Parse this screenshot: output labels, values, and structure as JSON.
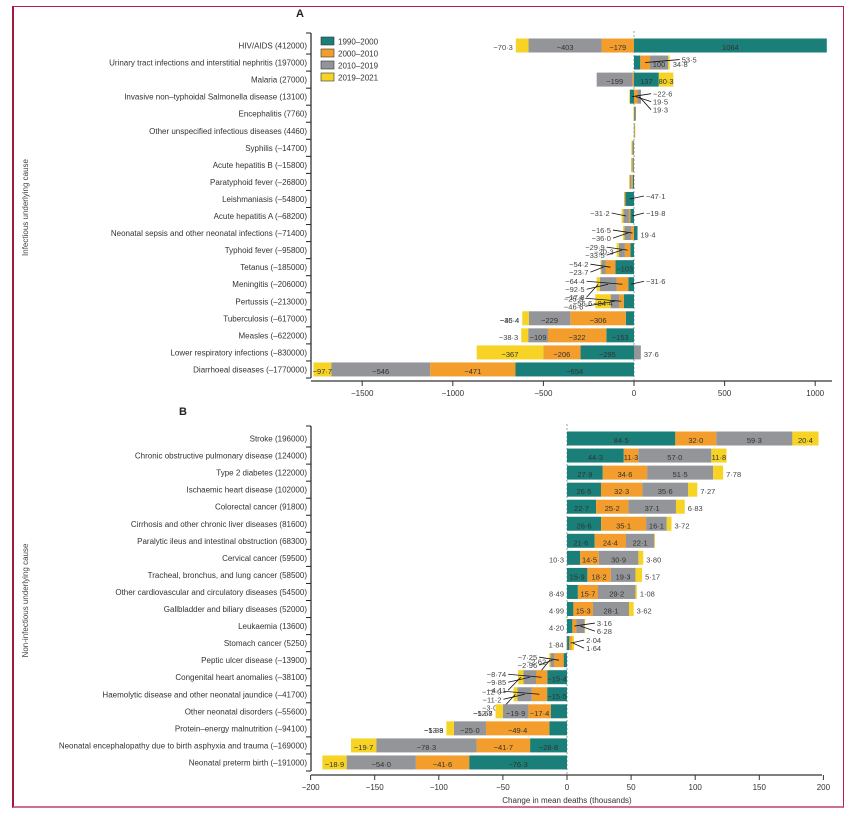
{
  "colors": {
    "1990-2000": "#1a7f78",
    "2000-2010": "#f39d2c",
    "2010-2019": "#939598",
    "2019-2021": "#f6d324"
  },
  "legend": [
    "1990–2000",
    "2000–2010",
    "2010–2019",
    "2019–2021"
  ],
  "chart_data": [
    {
      "type": "bar",
      "orientation": "horizontal-stacked-diverging",
      "title": "A",
      "ylabel": "Infectious underlying cause",
      "xlabel": "",
      "xlim": [
        -1750,
        1100
      ],
      "xticks": [
        -1500,
        -1000,
        -500,
        0,
        500,
        1000
      ],
      "xtick_labels": [
        "−1500",
        "−1000",
        "−500",
        "0",
        "500",
        "1000"
      ],
      "legend_position": "top-right",
      "series_names": [
        "1990–2000",
        "2000–2010",
        "2010–2019",
        "2019–2021"
      ],
      "categories": [
        "HIV/AIDS (412000)",
        "Urinary tract infections and interstitial nephritis (197000)",
        "Malaria (27000)",
        "Invasive non–typhoidal Salmonella disease (13100)",
        "Encephalitis (7760)",
        "Other unspecified infectious diseases (4460)",
        "Syphilis (–14700)",
        "Acute hepatitis B (–15800)",
        "Paratyphoid fever (–26800)",
        "Leishmaniasis (–54800)",
        "Acute hepatitis A (–68200)",
        "Neonatal sepsis and other neonatal infections (–71400)",
        "Typhoid fever (–95800)",
        "Tetanus (–185000)",
        "Meningitis (–206000)",
        "Pertussis (–213000)",
        "Tuberculosis (–617000)",
        "Measles (–622000)",
        "Lower respiratory infections (–830000)",
        "Diarrhoeal diseases (–1770000)"
      ],
      "values": [
        [
          1064,
          -179,
          -403,
          -70.3
        ],
        [
          34.8,
          53.5,
          100,
          8.7
        ],
        [
          137,
          -7,
          -199,
          80.3
        ],
        [
          -22.6,
          19.5,
          19.3,
          -3.1
        ],
        [
          5,
          -2,
          6,
          -1.2
        ],
        [
          2,
          2,
          -1,
          1.5
        ],
        [
          -3,
          -4,
          -5,
          -2.7
        ],
        [
          -4,
          -5,
          -5,
          -1.8
        ],
        [
          -7,
          -9,
          -8,
          -2.8
        ],
        [
          -47.1,
          -4,
          -2,
          -1.7
        ],
        [
          -19.8,
          -8,
          -31.2,
          -9.2
        ],
        [
          19.4,
          -16.5,
          -36.0,
          -8.3
        ],
        [
          -20.3,
          -29.9,
          -33.5,
          -12.1
        ],
        [
          -103,
          -54.2,
          -23.7,
          -4.1
        ],
        [
          -31.6,
          -64.4,
          -92.5,
          -17.8
        ],
        [
          -56.6,
          -25.8,
          -46.6,
          -84.4
        ],
        [
          -45.4,
          -306,
          -229,
          -36.4
        ],
        [
          -153,
          -322,
          -109,
          -38.3
        ],
        [
          -295,
          -206,
          37.6,
          -367
        ],
        [
          -654,
          -471,
          -546,
          -97.7
        ]
      ],
      "labels": [
        [
          {
            "s": 0,
            "t": "1064",
            "pos": "in"
          },
          {
            "s": 1,
            "t": "−179",
            "pos": "in"
          },
          {
            "s": 2,
            "t": "−403",
            "pos": "in"
          },
          {
            "s": 3,
            "t": "−70·3",
            "pos": "out"
          }
        ],
        [
          {
            "s": 0,
            "t": "34·8",
            "pos": "out"
          },
          {
            "s": 1,
            "t": "53·5",
            "pos": "callout"
          },
          {
            "s": 2,
            "t": "100",
            "pos": "in"
          }
        ],
        [
          {
            "s": 0,
            "t": "137",
            "pos": "in"
          },
          {
            "s": 2,
            "t": "−199",
            "pos": "in"
          },
          {
            "s": 3,
            "t": "80·3",
            "pos": "in"
          }
        ],
        [
          {
            "s": 0,
            "t": "−22·6",
            "pos": "callout"
          },
          {
            "s": 1,
            "t": "19·5",
            "pos": "callout"
          },
          {
            "s": 2,
            "t": "19·3",
            "pos": "callout"
          }
        ],
        [],
        [],
        [],
        [],
        [],
        [
          {
            "s": 0,
            "t": "−47·1",
            "pos": "callout"
          }
        ],
        [
          {
            "s": 0,
            "t": "−19·8",
            "pos": "callout"
          },
          {
            "s": 2,
            "t": "−31·2",
            "pos": "callout"
          }
        ],
        [
          {
            "s": 0,
            "t": "19·4",
            "pos": "out"
          },
          {
            "s": 1,
            "t": "−16·5",
            "pos": "callout"
          },
          {
            "s": 2,
            "t": "−36·0",
            "pos": "callout"
          }
        ],
        [
          {
            "s": 0,
            "t": "−20·3",
            "pos": "out"
          },
          {
            "s": 1,
            "t": "−29·9",
            "pos": "callout"
          },
          {
            "s": 2,
            "t": "−33·5",
            "pos": "callout"
          }
        ],
        [
          {
            "s": 0,
            "t": "−103",
            "pos": "in"
          },
          {
            "s": 1,
            "t": "−54·2",
            "pos": "callout"
          },
          {
            "s": 2,
            "t": "−23·7",
            "pos": "callout"
          }
        ],
        [
          {
            "s": 0,
            "t": "−31·6",
            "pos": "callout"
          },
          {
            "s": 1,
            "t": "−64·4",
            "pos": "callout"
          },
          {
            "s": 2,
            "t": "−92·5",
            "pos": "callout"
          },
          {
            "s": 3,
            "t": "−17·8",
            "pos": "callout"
          }
        ],
        [
          {
            "s": 0,
            "t": "−56·6",
            "pos": "out"
          },
          {
            "s": 1,
            "t": "−25·8",
            "pos": "callout"
          },
          {
            "s": 2,
            "t": "−46·6",
            "pos": "callout"
          },
          {
            "s": 3,
            "t": "−84·4",
            "pos": "in"
          }
        ],
        [
          {
            "s": 0,
            "t": "−45·4",
            "pos": "out"
          },
          {
            "s": 1,
            "t": "−306",
            "pos": "in"
          },
          {
            "s": 2,
            "t": "−229",
            "pos": "in"
          },
          {
            "s": 3,
            "t": "−36·4",
            "pos": "out"
          }
        ],
        [
          {
            "s": 0,
            "t": "−153",
            "pos": "in"
          },
          {
            "s": 1,
            "t": "−322",
            "pos": "in"
          },
          {
            "s": 2,
            "t": "−109",
            "pos": "in"
          },
          {
            "s": 3,
            "t": "−38·3",
            "pos": "out"
          }
        ],
        [
          {
            "s": 0,
            "t": "−295",
            "pos": "in"
          },
          {
            "s": 1,
            "t": "−206",
            "pos": "in"
          },
          {
            "s": 2,
            "t": "37·6",
            "pos": "out"
          },
          {
            "s": 3,
            "t": "−367",
            "pos": "in"
          }
        ],
        [
          {
            "s": 0,
            "t": "−654",
            "pos": "in"
          },
          {
            "s": 1,
            "t": "−471",
            "pos": "in"
          },
          {
            "s": 2,
            "t": "−546",
            "pos": "in"
          },
          {
            "s": 3,
            "t": "−97·7",
            "pos": "in"
          }
        ]
      ]
    },
    {
      "type": "bar",
      "orientation": "horizontal-stacked-diverging",
      "title": "B",
      "ylabel": "Non-infectious underlying cause",
      "xlabel": "Change in mean deaths (thousands)",
      "xlim": [
        -200,
        205
      ],
      "xticks": [
        -200,
        -150,
        -100,
        -50,
        0,
        50,
        100,
        150,
        200
      ],
      "xtick_labels": [
        "−200",
        "−150",
        "−100",
        "−50",
        "0",
        "50",
        "100",
        "150",
        "200"
      ],
      "series_names": [
        "1990–2000",
        "2000–2010",
        "2010–2019",
        "2019–2021"
      ],
      "categories": [
        "Stroke (196000)",
        "Chronic obstructive pulmonary disease (124000)",
        "Type 2 diabetes (122000)",
        "Ischaemic heart disease (102000)",
        "Colorectal cancer (91800)",
        "Cirrhosis and other chronic liver diseases (81600)",
        "Paralytic ileus and intestinal obstruction (68300)",
        "Cervical cancer (59500)",
        "Tracheal, bronchus, and lung cancer (58500)",
        "Other cardiovascular and circulatory diseases (54500)",
        "Gallbladder and biliary diseases (52000)",
        "Leukaemia (13600)",
        "Stomach cancer (5250)",
        "Peptic ulcer disease (–13900)",
        "Congenital heart anomalies (–38100)",
        "Haemolytic  disease and other neonatal jaundice (–41700)",
        "Other neonatal disorders (–55600)",
        "Protein–energy malnutrition (–94100)",
        "Neonatal encephalopathy due to birth asphyxia and trauma (–169000)",
        "Neonatal preterm birth (–191000)"
      ],
      "values": [
        [
          84.5,
          32.0,
          59.3,
          20.4
        ],
        [
          44.3,
          11.3,
          57.0,
          11.8
        ],
        [
          27.9,
          34.6,
          51.5,
          7.78
        ],
        [
          26.5,
          32.3,
          35.6,
          7.27
        ],
        [
          22.7,
          25.2,
          37.1,
          6.83
        ],
        [
          26.6,
          35.1,
          16.1,
          3.72
        ],
        [
          21.6,
          24.4,
          22.1,
          0.5
        ],
        [
          10.3,
          14.5,
          30.9,
          3.8
        ],
        [
          15.9,
          18.2,
          19.3,
          5.17
        ],
        [
          8.49,
          15.7,
          29.2,
          1.08
        ],
        [
          4.99,
          15.3,
          28.1,
          3.62
        ],
        [
          4.2,
          3.16,
          6.28,
          0.3
        ],
        [
          1.84,
          2.04,
          -0.3,
          1.64
        ],
        [
          -2.62,
          -7.25,
          -2.96,
          -1.08
        ],
        [
          -15.4,
          -8.74,
          -9.85,
          -4.11
        ],
        [
          -15.5,
          -12.0,
          -11.2,
          -3.06
        ],
        [
          -12.7,
          -17.4,
          -19.9,
          -5.68
        ],
        [
          -13.8,
          -49.4,
          -25.0,
          -5.89
        ],
        [
          -28.8,
          -41.7,
          -78.3,
          -19.7
        ],
        [
          -76.3,
          -41.6,
          -54.0,
          -18.9
        ]
      ],
      "labels": [
        [
          {
            "s": 0,
            "t": "84·5",
            "pos": "in"
          },
          {
            "s": 1,
            "t": "32·0",
            "pos": "in"
          },
          {
            "s": 2,
            "t": "59·3",
            "pos": "in"
          },
          {
            "s": 3,
            "t": "20·4",
            "pos": "in"
          }
        ],
        [
          {
            "s": 0,
            "t": "44·3",
            "pos": "in"
          },
          {
            "s": 1,
            "t": "11·3",
            "pos": "in"
          },
          {
            "s": 2,
            "t": "57·0",
            "pos": "in"
          },
          {
            "s": 3,
            "t": "11·8",
            "pos": "in"
          }
        ],
        [
          {
            "s": 0,
            "t": "27·9",
            "pos": "in"
          },
          {
            "s": 1,
            "t": "34·6",
            "pos": "in"
          },
          {
            "s": 2,
            "t": "51·5",
            "pos": "in"
          },
          {
            "s": 3,
            "t": "7·78",
            "pos": "out"
          }
        ],
        [
          {
            "s": 0,
            "t": "26·5",
            "pos": "in"
          },
          {
            "s": 1,
            "t": "32·3",
            "pos": "in"
          },
          {
            "s": 2,
            "t": "35·6",
            "pos": "in"
          },
          {
            "s": 3,
            "t": "7·27",
            "pos": "out"
          }
        ],
        [
          {
            "s": 0,
            "t": "22·7",
            "pos": "in"
          },
          {
            "s": 1,
            "t": "25·2",
            "pos": "in"
          },
          {
            "s": 2,
            "t": "37·1",
            "pos": "in"
          },
          {
            "s": 3,
            "t": "6·83",
            "pos": "out"
          }
        ],
        [
          {
            "s": 0,
            "t": "26·6",
            "pos": "in"
          },
          {
            "s": 1,
            "t": "35·1",
            "pos": "in"
          },
          {
            "s": 2,
            "t": "16·1",
            "pos": "in"
          },
          {
            "s": 3,
            "t": "3·72",
            "pos": "out"
          }
        ],
        [
          {
            "s": 0,
            "t": "21·6",
            "pos": "in"
          },
          {
            "s": 1,
            "t": "24·4",
            "pos": "in"
          },
          {
            "s": 2,
            "t": "22·1",
            "pos": "in"
          }
        ],
        [
          {
            "s": 0,
            "t": "10·3",
            "pos": "outleft"
          },
          {
            "s": 1,
            "t": "14·5",
            "pos": "in"
          },
          {
            "s": 2,
            "t": "30·9",
            "pos": "in"
          },
          {
            "s": 3,
            "t": "3·80",
            "pos": "out"
          }
        ],
        [
          {
            "s": 0,
            "t": "15·9",
            "pos": "in"
          },
          {
            "s": 1,
            "t": "18·2",
            "pos": "in"
          },
          {
            "s": 2,
            "t": "19·3",
            "pos": "in"
          },
          {
            "s": 3,
            "t": "5·17",
            "pos": "out"
          }
        ],
        [
          {
            "s": 0,
            "t": "8·49",
            "pos": "outleft"
          },
          {
            "s": 1,
            "t": "15·7",
            "pos": "in"
          },
          {
            "s": 2,
            "t": "29·2",
            "pos": "in"
          },
          {
            "s": 3,
            "t": "1·08",
            "pos": "out"
          }
        ],
        [
          {
            "s": 0,
            "t": "4·99",
            "pos": "outleft"
          },
          {
            "s": 1,
            "t": "15·3",
            "pos": "in"
          },
          {
            "s": 2,
            "t": "28·1",
            "pos": "in"
          },
          {
            "s": 3,
            "t": "3·62",
            "pos": "out"
          }
        ],
        [
          {
            "s": 0,
            "t": "4·20",
            "pos": "outleft"
          },
          {
            "s": 1,
            "t": "3·16",
            "pos": "callout"
          },
          {
            "s": 2,
            "t": "6·28",
            "pos": "callout"
          }
        ],
        [
          {
            "s": 0,
            "t": "1·84",
            "pos": "outleft"
          },
          {
            "s": 1,
            "t": "2·04",
            "pos": "callout"
          },
          {
            "s": 3,
            "t": "1·64",
            "pos": "callout"
          }
        ],
        [
          {
            "s": 0,
            "t": "−2·62",
            "pos": "out"
          },
          {
            "s": 1,
            "t": "−7·25",
            "pos": "callout"
          },
          {
            "s": 2,
            "t": "−2·96",
            "pos": "callout"
          },
          {
            "s": 3,
            "t": "−1·08",
            "pos": "callout"
          }
        ],
        [
          {
            "s": 0,
            "t": "−15·4",
            "pos": "in"
          },
          {
            "s": 1,
            "t": "−8·74",
            "pos": "callout"
          },
          {
            "s": 2,
            "t": "−9·85",
            "pos": "callout"
          },
          {
            "s": 3,
            "t": "−4·11",
            "pos": "callout"
          }
        ],
        [
          {
            "s": 0,
            "t": "−15·5",
            "pos": "in"
          },
          {
            "s": 1,
            "t": "−12·0",
            "pos": "callout"
          },
          {
            "s": 2,
            "t": "−11·2",
            "pos": "callout"
          },
          {
            "s": 3,
            "t": "−3·06",
            "pos": "callout"
          }
        ],
        [
          {
            "s": 0,
            "t": "−12·7",
            "pos": "out"
          },
          {
            "s": 1,
            "t": "−17·4",
            "pos": "in"
          },
          {
            "s": 2,
            "t": "−19·9",
            "pos": "in"
          },
          {
            "s": 3,
            "t": "−5·68",
            "pos": "out"
          }
        ],
        [
          {
            "s": 0,
            "t": "−13·8",
            "pos": "out"
          },
          {
            "s": 1,
            "t": "−49·4",
            "pos": "in"
          },
          {
            "s": 2,
            "t": "−25·0",
            "pos": "in"
          },
          {
            "s": 3,
            "t": "−5·89",
            "pos": "out"
          }
        ],
        [
          {
            "s": 0,
            "t": "−28·8",
            "pos": "in"
          },
          {
            "s": 1,
            "t": "−41·7",
            "pos": "in"
          },
          {
            "s": 2,
            "t": "−78·3",
            "pos": "in"
          },
          {
            "s": 3,
            "t": "−19·7",
            "pos": "in"
          }
        ],
        [
          {
            "s": 0,
            "t": "−76·3",
            "pos": "in"
          },
          {
            "s": 1,
            "t": "−41·6",
            "pos": "in"
          },
          {
            "s": 2,
            "t": "−54·0",
            "pos": "in"
          },
          {
            "s": 3,
            "t": "−18·9",
            "pos": "in"
          }
        ]
      ]
    }
  ]
}
